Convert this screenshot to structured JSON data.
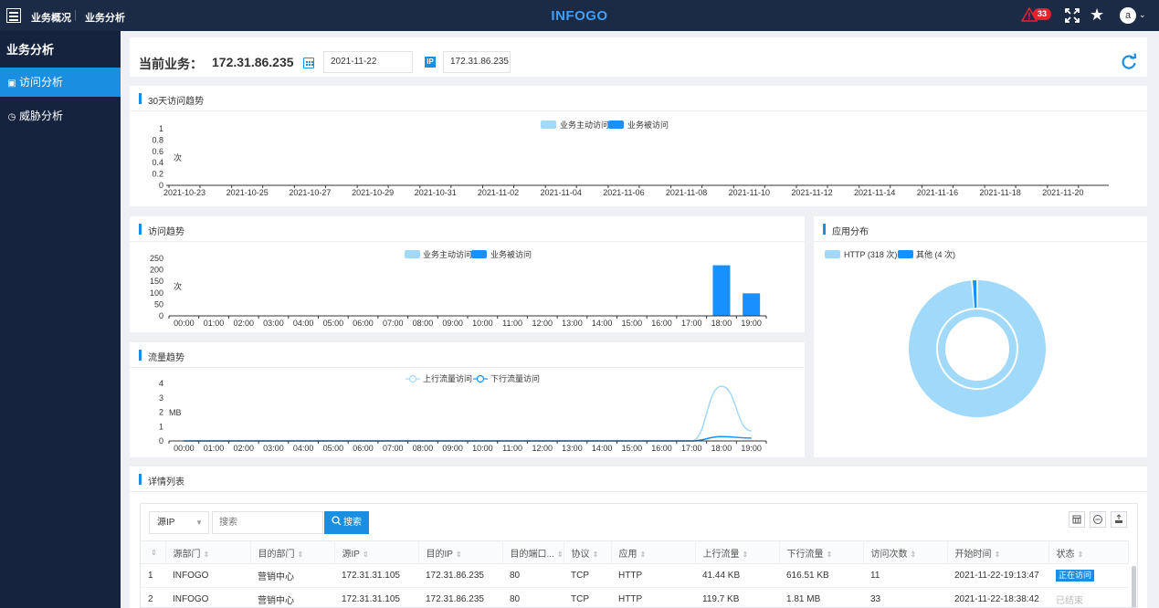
{
  "topbar": {
    "nav_overview": "业务概况",
    "nav_analysis": "业务分析",
    "brand": "INFOGO",
    "alert_count": "33",
    "user_initial": "a"
  },
  "sidebar": {
    "title": "业务分析",
    "items": [
      {
        "label": "访问分析",
        "active": true,
        "icon": "image-icon"
      },
      {
        "label": "威胁分析",
        "active": false,
        "icon": "compass-icon"
      }
    ]
  },
  "header": {
    "current_label": "当前业务：",
    "current_value": "172.31.86.235",
    "date": "2021-11-22",
    "ip_icon": "IP",
    "ip": "172.31.86.235"
  },
  "colors": {
    "accent": "#1a8ee0",
    "series_active": "#a0d9fa",
    "series_passive": "#1890ff",
    "alert": "#e8232c"
  },
  "trend30": {
    "title": "30天访问趋势",
    "chart_data": {
      "type": "bar",
      "legend": [
        "业务主动访问",
        "业务被访问"
      ],
      "legend_position": "top-center",
      "ylabel": "次",
      "ylim": [
        0,
        1
      ],
      "yticks": [
        "0",
        "0.2",
        "0.4",
        "0.6",
        "0.8",
        "1"
      ],
      "categories": [
        "2021-10-23",
        "2021-10-25",
        "2021-10-27",
        "2021-10-29",
        "2021-10-31",
        "2021-11-02",
        "2021-11-04",
        "2021-11-06",
        "2021-11-08",
        "2021-11-10",
        "2021-11-12",
        "2021-11-14",
        "2021-11-16",
        "2021-11-18",
        "2021-11-20"
      ],
      "series": [
        {
          "name": "业务主动访问",
          "values": [
            0,
            0,
            0,
            0,
            0,
            0,
            0,
            0,
            0,
            0,
            0,
            0,
            0,
            0,
            0
          ]
        },
        {
          "name": "业务被访问",
          "values": [
            0,
            0,
            0,
            0,
            0,
            0,
            0,
            0,
            0,
            0,
            0,
            0,
            0,
            0,
            0
          ]
        }
      ]
    }
  },
  "visit": {
    "title": "访问趋势",
    "chart_data": {
      "type": "bar",
      "legend": [
        "业务主动访问",
        "业务被访问"
      ],
      "legend_position": "top-center",
      "ylabel": "次",
      "ylim": [
        0,
        250
      ],
      "yticks": [
        "0",
        "50",
        "100",
        "150",
        "200",
        "250"
      ],
      "categories": [
        "00:00",
        "01:00",
        "02:00",
        "03:00",
        "04:00",
        "05:00",
        "06:00",
        "07:00",
        "08:00",
        "09:00",
        "10:00",
        "11:00",
        "12:00",
        "13:00",
        "14:00",
        "15:00",
        "16:00",
        "17:00",
        "18:00",
        "19:00"
      ],
      "series": [
        {
          "name": "业务主动访问",
          "values": [
            0,
            0,
            0,
            0,
            0,
            0,
            0,
            0,
            0,
            0,
            0,
            0,
            0,
            0,
            0,
            0,
            0,
            0,
            0,
            0
          ]
        },
        {
          "name": "业务被访问",
          "values": [
            0,
            0,
            0,
            0,
            0,
            0,
            0,
            0,
            0,
            0,
            0,
            0,
            0,
            0,
            0,
            0,
            0,
            0,
            220,
            98
          ]
        }
      ]
    }
  },
  "traffic": {
    "title": "流量趋势",
    "chart_data": {
      "type": "line",
      "legend": [
        "上行流量访问",
        "下行流量访问"
      ],
      "legend_position": "top-center",
      "ylabel": "MB",
      "ylim": [
        0,
        4
      ],
      "yticks": [
        "0",
        "1",
        "2",
        "3",
        "4"
      ],
      "categories": [
        "00:00",
        "01:00",
        "02:00",
        "03:00",
        "04:00",
        "05:00",
        "06:00",
        "07:00",
        "08:00",
        "09:00",
        "10:00",
        "11:00",
        "12:00",
        "13:00",
        "14:00",
        "15:00",
        "16:00",
        "17:00",
        "18:00",
        "19:00"
      ],
      "series": [
        {
          "name": "上行流量访问",
          "values": [
            0,
            0,
            0,
            0,
            0,
            0,
            0,
            0,
            0,
            0,
            0,
            0,
            0,
            0,
            0,
            0,
            0,
            0,
            3.8,
            0.7
          ]
        },
        {
          "name": "下行流量访问",
          "values": [
            0,
            0,
            0,
            0,
            0,
            0,
            0,
            0,
            0,
            0,
            0,
            0,
            0,
            0,
            0,
            0,
            0,
            0,
            0.3,
            0.2
          ]
        }
      ]
    }
  },
  "appdist": {
    "title": "应用分布",
    "chart_data": {
      "type": "pie",
      "legend": [
        "HTTP (318 次)",
        "其他 (4 次)"
      ],
      "legend_position": "top-left",
      "slices": [
        {
          "name": "HTTP",
          "value": 318
        },
        {
          "name": "其他",
          "value": 4
        }
      ]
    }
  },
  "detail": {
    "title": "详情列表",
    "select_value": "源IP",
    "search_placeholder": "搜索",
    "search_button": "搜索",
    "columns": [
      "",
      "源部门",
      "目的部门",
      "源IP",
      "目的IP",
      "目的端口...",
      "协议",
      "应用",
      "上行流量",
      "下行流量",
      "访问次数",
      "开始时间",
      "状态"
    ],
    "rows": [
      {
        "idx": "1",
        "src_dept": "INFOGO",
        "dst_dept": "营销中心",
        "src_ip": "172.31.31.105",
        "dst_ip": "172.31.86.235",
        "port": "80",
        "proto": "TCP",
        "app": "HTTP",
        "up": "41.44 KB",
        "down": "616.51 KB",
        "count": "11",
        "start": "2021-11-22-19:13:47",
        "status": "正在访问",
        "active": true
      },
      {
        "idx": "2",
        "src_dept": "INFOGO",
        "dst_dept": "营销中心",
        "src_ip": "172.31.31.105",
        "dst_ip": "172.31.86.235",
        "port": "80",
        "proto": "TCP",
        "app": "HTTP",
        "up": "119.7 KB",
        "down": "1.81 MB",
        "count": "33",
        "start": "2021-11-22-18:38:42",
        "status": "已结束",
        "active": false
      }
    ]
  }
}
